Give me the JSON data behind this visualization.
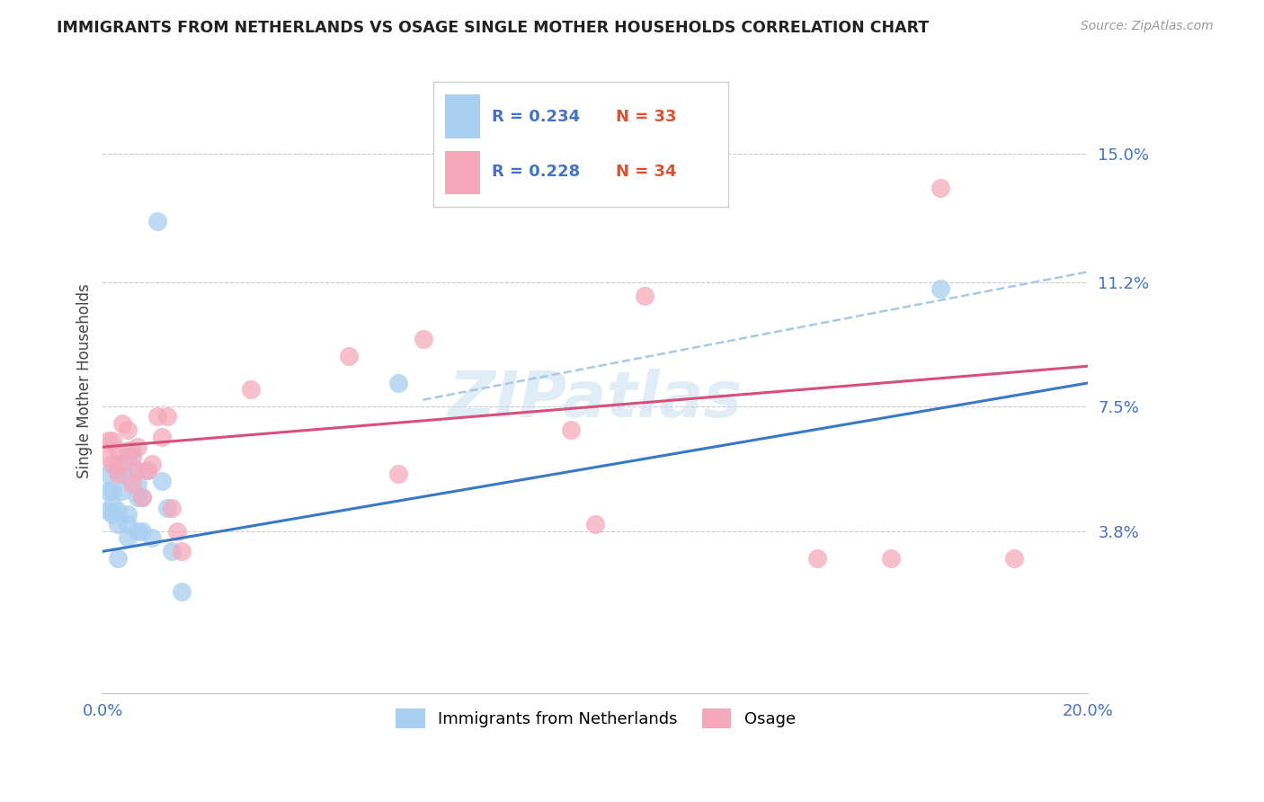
{
  "title": "IMMIGRANTS FROM NETHERLANDS VS OSAGE SINGLE MOTHER HOUSEHOLDS CORRELATION CHART",
  "source": "Source: ZipAtlas.com",
  "ylabel": "Single Mother Households",
  "xlim": [
    0.0,
    0.2
  ],
  "ylim": [
    -0.01,
    0.175
  ],
  "yticks": [
    0.038,
    0.075,
    0.112,
    0.15
  ],
  "ytick_labels": [
    "3.8%",
    "7.5%",
    "11.2%",
    "15.0%"
  ],
  "xticks": [
    0.0,
    0.04,
    0.08,
    0.12,
    0.16,
    0.2
  ],
  "legend_blue_r": "0.234",
  "legend_blue_n": "33",
  "legend_pink_r": "0.228",
  "legend_pink_n": "34",
  "legend_label_blue": "Immigrants from Netherlands",
  "legend_label_pink": "Osage",
  "blue_color": "#A8CEF0",
  "pink_color": "#F5A8BC",
  "line_blue_color": "#3878C8",
  "line_pink_color": "#D8507A",
  "dashed_line_color": "#A8C8E8",
  "watermark": "ZIPatlas",
  "blue_scatter_x": [
    0.001,
    0.001,
    0.001,
    0.002,
    0.002,
    0.002,
    0.003,
    0.003,
    0.003,
    0.003,
    0.004,
    0.004,
    0.004,
    0.005,
    0.005,
    0.005,
    0.005,
    0.006,
    0.006,
    0.007,
    0.007,
    0.007,
    0.008,
    0.008,
    0.009,
    0.01,
    0.011,
    0.012,
    0.013,
    0.014,
    0.016,
    0.06,
    0.17
  ],
  "blue_scatter_y": [
    0.05,
    0.055,
    0.044,
    0.046,
    0.05,
    0.043,
    0.04,
    0.044,
    0.056,
    0.03,
    0.05,
    0.055,
    0.058,
    0.036,
    0.04,
    0.043,
    0.06,
    0.057,
    0.062,
    0.048,
    0.052,
    0.038,
    0.038,
    0.048,
    0.056,
    0.036,
    0.13,
    0.053,
    0.045,
    0.032,
    0.02,
    0.082,
    0.11
  ],
  "pink_scatter_x": [
    0.001,
    0.001,
    0.002,
    0.002,
    0.003,
    0.003,
    0.004,
    0.004,
    0.005,
    0.005,
    0.006,
    0.006,
    0.007,
    0.007,
    0.008,
    0.009,
    0.01,
    0.011,
    0.012,
    0.013,
    0.014,
    0.015,
    0.016,
    0.03,
    0.05,
    0.06,
    0.065,
    0.095,
    0.1,
    0.11,
    0.145,
    0.16,
    0.17,
    0.185
  ],
  "pink_scatter_y": [
    0.06,
    0.065,
    0.058,
    0.065,
    0.055,
    0.062,
    0.058,
    0.07,
    0.062,
    0.068,
    0.052,
    0.06,
    0.056,
    0.063,
    0.048,
    0.056,
    0.058,
    0.072,
    0.066,
    0.072,
    0.045,
    0.038,
    0.032,
    0.08,
    0.09,
    0.055,
    0.095,
    0.068,
    0.04,
    0.108,
    0.03,
    0.03,
    0.14,
    0.03
  ],
  "blue_line_x0": 0.0,
  "blue_line_x1": 0.2,
  "blue_line_y0": 0.032,
  "blue_line_y1": 0.082,
  "pink_line_x0": 0.0,
  "pink_line_x1": 0.2,
  "pink_line_y0": 0.063,
  "pink_line_y1": 0.087,
  "dashed_line_x0": 0.065,
  "dashed_line_x1": 0.2,
  "dashed_line_y0": 0.077,
  "dashed_line_y1": 0.115
}
